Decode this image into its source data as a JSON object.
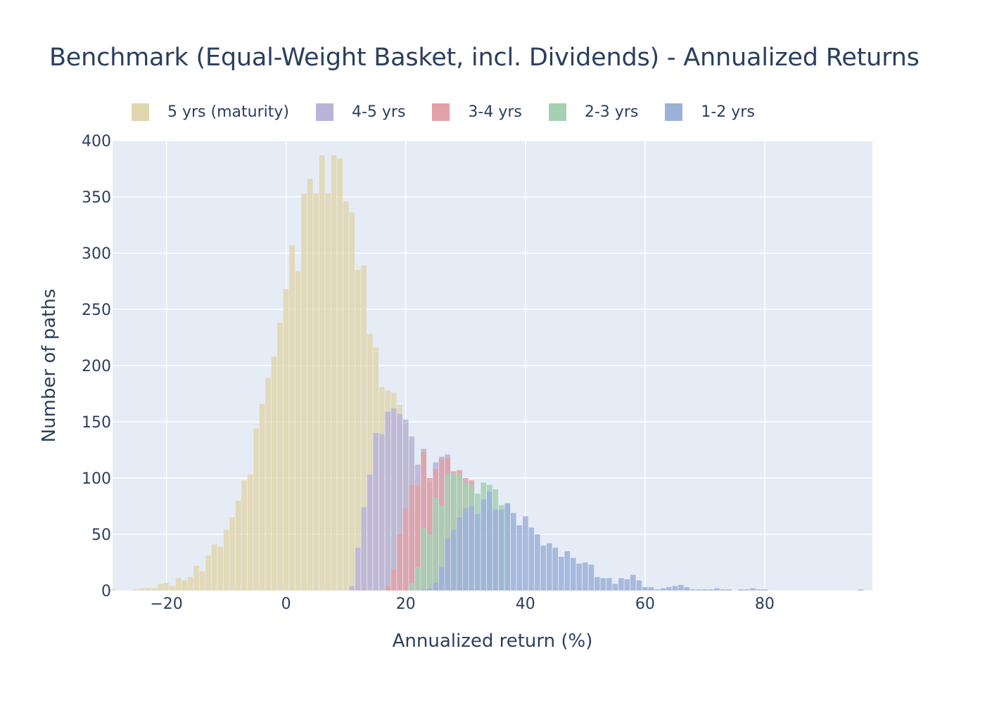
{
  "chart_data": {
    "type": "bar",
    "title": "Benchmark (Equal-Weight Basket, incl. Dividends) - Annualized Returns",
    "xlabel": "Annualized return (%)",
    "ylabel": "Number of paths",
    "xlim": [
      -29,
      98
    ],
    "ylim": [
      0,
      400
    ],
    "x_ticks": [
      "−20",
      "0",
      "20",
      "40",
      "60",
      "80"
    ],
    "x_tick_values": [
      -20,
      0,
      20,
      40,
      60,
      80
    ],
    "y_ticks": [
      "0",
      "50",
      "100",
      "150",
      "200",
      "250",
      "300",
      "350",
      "400"
    ],
    "y_tick_values": [
      0,
      50,
      100,
      150,
      200,
      250,
      300,
      350,
      400
    ],
    "barmode": "overlay",
    "bin_width": 1,
    "grid": true,
    "legend_position": "top",
    "colors": {
      "plot_background": "#e5ecf6",
      "grid": "#ffffff",
      "text": "#2a3f5f"
    },
    "series": [
      {
        "name": "5 yrs (maturity)",
        "color": "#e0d6ad",
        "x": [
          -29,
          -28,
          -27,
          -26,
          -25,
          -24,
          -23,
          -22,
          -21,
          -20,
          -19,
          -18,
          -17,
          -16,
          -15,
          -14,
          -13,
          -12,
          -11,
          -10,
          -9,
          -8,
          -7,
          -6,
          -5,
          -4,
          -3,
          -2,
          -1,
          0,
          1,
          2,
          3,
          4,
          5,
          6,
          7,
          8,
          9,
          10,
          11,
          12,
          13,
          14,
          15,
          16,
          17,
          18,
          19,
          20,
          21,
          22
        ],
        "values": [
          1,
          0,
          0,
          0,
          1,
          2,
          2,
          2,
          6,
          7,
          4,
          11,
          9,
          12,
          22,
          17,
          31,
          41,
          39,
          54,
          65,
          80,
          98,
          103,
          144,
          166,
          189,
          208,
          238,
          268,
          307,
          284,
          353,
          366,
          353,
          387,
          353,
          387,
          384,
          346,
          336,
          285,
          289,
          228,
          216,
          181,
          178,
          176,
          165,
          148,
          112,
          101
        ]
      },
      {
        "name": "4-5 yrs",
        "color": "#b8b3d9",
        "x": [
          11,
          12,
          13,
          14,
          15,
          16,
          17,
          18,
          19,
          20,
          21,
          22,
          23,
          24,
          25,
          26,
          27,
          28
        ],
        "values": [
          4,
          38,
          74,
          103,
          140,
          139,
          159,
          162,
          157,
          152,
          137,
          112,
          126,
          96,
          114,
          119,
          121,
          100
        ]
      },
      {
        "name": "3-4 yrs",
        "color": "#e1a1a6",
        "x": [
          17,
          18,
          19,
          20,
          21,
          22,
          23,
          24,
          25,
          26,
          27,
          28,
          29,
          30,
          31
        ],
        "values": [
          4,
          19,
          50,
          73,
          94,
          93,
          123,
          100,
          108,
          117,
          118,
          106,
          107,
          100,
          98
        ]
      },
      {
        "name": "2-3 yrs",
        "color": "#a3d1b1",
        "x": [
          21,
          22,
          23,
          24,
          25,
          26,
          27,
          28,
          29,
          30,
          31,
          32,
          33,
          34,
          35,
          36,
          37
        ],
        "values": [
          7,
          21,
          56,
          50,
          83,
          76,
          104,
          104,
          103,
          96,
          94,
          86,
          96,
          94,
          90,
          76,
          78
        ]
      },
      {
        "name": "1-2 yrs",
        "color": "#9cb1d9",
        "x": [
          23,
          24,
          25,
          26,
          27,
          28,
          29,
          30,
          31,
          32,
          33,
          34,
          35,
          36,
          37,
          38,
          39,
          40,
          41,
          42,
          43,
          44,
          45,
          46,
          47,
          48,
          49,
          50,
          51,
          52,
          53,
          54,
          55,
          56,
          57,
          58,
          59,
          60,
          61,
          62,
          63,
          64,
          65,
          66,
          67,
          68,
          69,
          70,
          71,
          72,
          73,
          74,
          75,
          76,
          77,
          78,
          79,
          80,
          81,
          82,
          83,
          84,
          85,
          86,
          87,
          88,
          89,
          90,
          91,
          92,
          93,
          94,
          95,
          96
        ],
        "values": [
          1,
          2,
          7,
          21,
          46,
          54,
          65,
          73,
          75,
          68,
          81,
          88,
          72,
          72,
          77,
          69,
          58,
          66,
          56,
          50,
          40,
          42,
          38,
          30,
          35,
          29,
          24,
          25,
          23,
          12,
          11,
          11,
          6,
          11,
          10,
          14,
          9,
          3,
          3,
          1,
          2,
          3,
          4,
          5,
          3,
          1,
          1,
          1,
          1,
          2,
          1,
          1,
          0,
          1,
          1,
          2,
          1,
          1,
          0,
          0,
          0,
          0,
          0,
          0,
          0,
          0,
          0,
          0,
          0,
          0,
          0,
          0,
          0,
          1
        ]
      }
    ]
  }
}
